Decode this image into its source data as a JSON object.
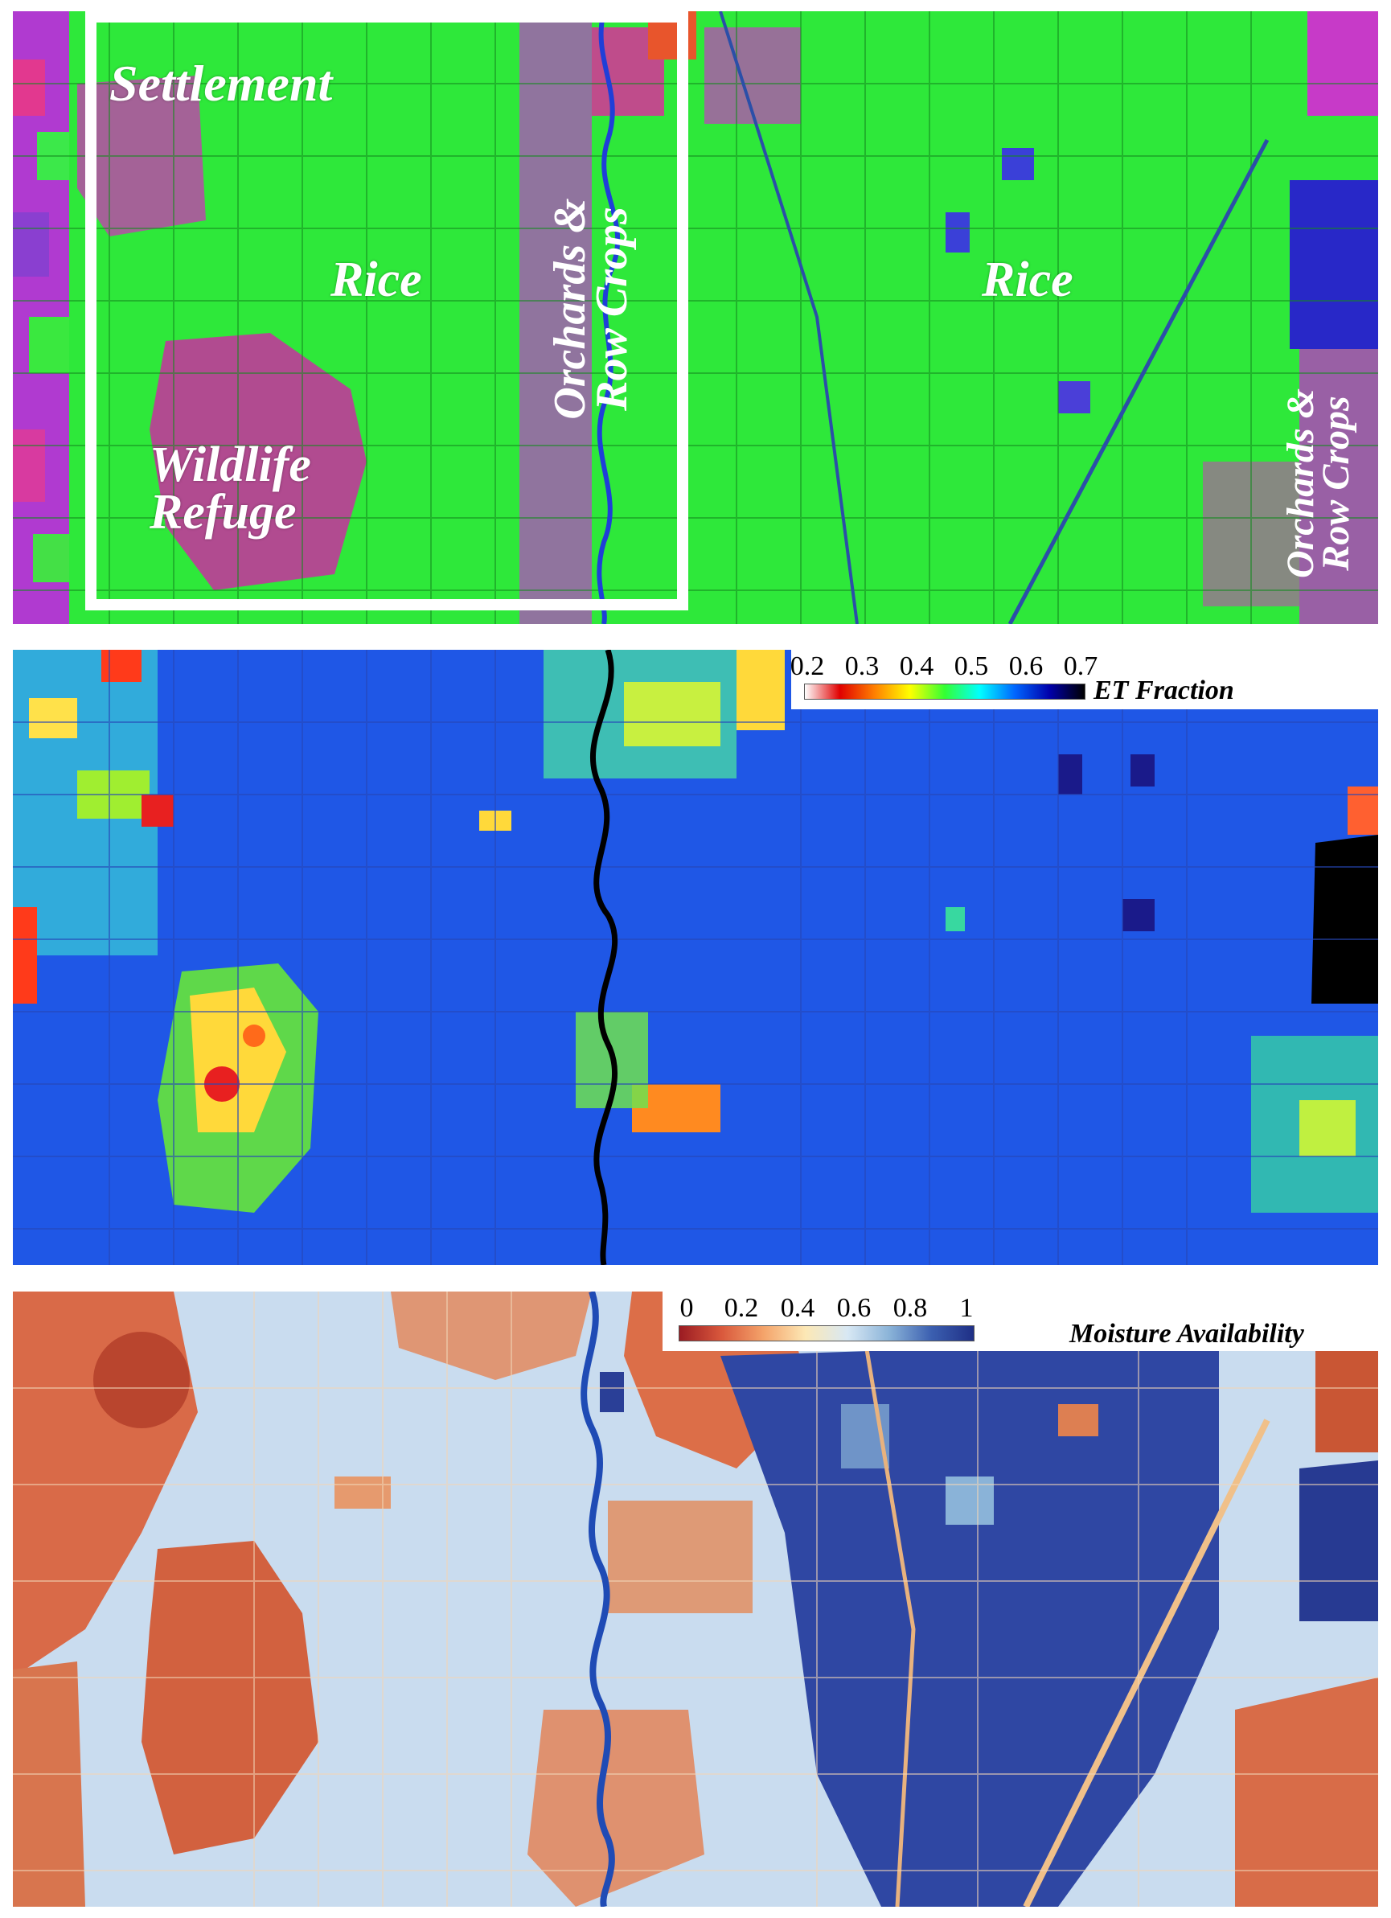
{
  "panel_rgb": {
    "labels": {
      "settlement": "Settlement",
      "rice_left": "Rice",
      "wildlife_refuge": "Wildlife Refuge",
      "orchards_center": "Orchards & Row Crops",
      "rice_right": "Rice",
      "orchards_right": "Orchards & Row Crops"
    },
    "colors": {
      "field_green": "#2ee83a",
      "magenta": "#d02fd0",
      "blue": "#2a2acc",
      "box": "#ffffff"
    }
  },
  "panel_et": {
    "legend": {
      "title": "ET Fraction",
      "ticks": [
        "0.2",
        "0.3",
        "0.4",
        "0.5",
        "0.6",
        "0.7"
      ],
      "colormap": [
        "#ffffff",
        "#e00000",
        "#ff8000",
        "#ffff00",
        "#33ff33",
        "#00ffff",
        "#0066ff",
        "#0000aa",
        "#000000"
      ]
    },
    "colors": {
      "background": "#1f57e6",
      "river": "#000000"
    }
  },
  "panel_ma": {
    "legend": {
      "title": "Moisture Availability",
      "ticks": [
        "0",
        "0.2",
        "0.4",
        "0.6",
        "0.8",
        "1"
      ],
      "colormap": [
        "#9b1b22",
        "#d9583c",
        "#f4a36a",
        "#fce8b5",
        "#d8e8f4",
        "#8ab3d8",
        "#3b5fb0",
        "#1f2f86"
      ]
    },
    "colors": {
      "dry": "#d96a48",
      "wet_light": "#c9dcef",
      "wet_dark": "#2a3f97",
      "river": "#1f4bb5"
    }
  }
}
